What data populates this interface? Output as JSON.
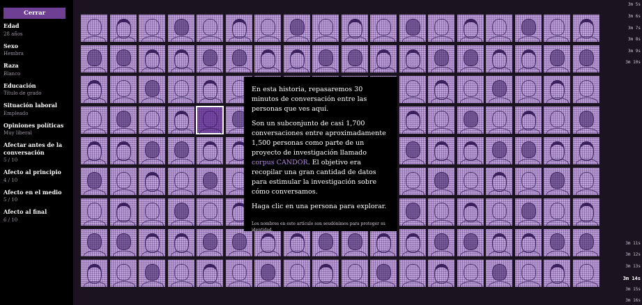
{
  "sidebar": {
    "close_label": "Cerrar",
    "attributes": [
      {
        "label": "Edad",
        "value": "28 años"
      },
      {
        "label": "Sexo",
        "value": "Hembra"
      },
      {
        "label": "Raza",
        "value": "Blanco"
      },
      {
        "label": "Educación",
        "value": "Título de grado"
      },
      {
        "label": "Situación laboral",
        "value": "Empleado"
      },
      {
        "label": "Opiniones políticas",
        "value": "Muy liberal"
      },
      {
        "label": "Afectar antes de la conversación",
        "value": "5 / 10"
      },
      {
        "label": "Afecto al principio",
        "value": "4 / 10"
      },
      {
        "label": "Afecto en el medio",
        "value": "5 / 10"
      },
      {
        "label": "Afecto al final",
        "value": "6 / 10"
      }
    ]
  },
  "info": {
    "p1": "En esta historia, repasaremos 30 minutos de conversación entre las personas que ves aquí.",
    "p2_before": "Son un subconjunto de casi 1,700 conversaciones entre aproximadamente 1,500 personas como parte de un proyecto de investigación llamado ",
    "p2_link": "corpus CANDOR",
    "p2_after": ". El objetivo era recopilar una gran cantidad de datos para estimular la investigación sobre cómo conversamos.",
    "p3": "Haga clic en una persona para explorar.",
    "footnote": "Los nombres en este artículo son seudónimos para proteger su identidad."
  },
  "timeline": {
    "top": [
      "3m 5s",
      "3m 6s",
      "3m 7s",
      "3m 8s",
      "3m 9s",
      "3m 10s"
    ],
    "bottom": [
      "3m 11s",
      "3m 12s",
      "3m 13s",
      "3m 14s",
      "3m 15s",
      "3m 16s"
    ],
    "active": "3m 14s"
  },
  "colors": {
    "background": "#1b1320",
    "face": "#c2a4dc",
    "button": "#6f3f93",
    "link": "#b186df"
  }
}
